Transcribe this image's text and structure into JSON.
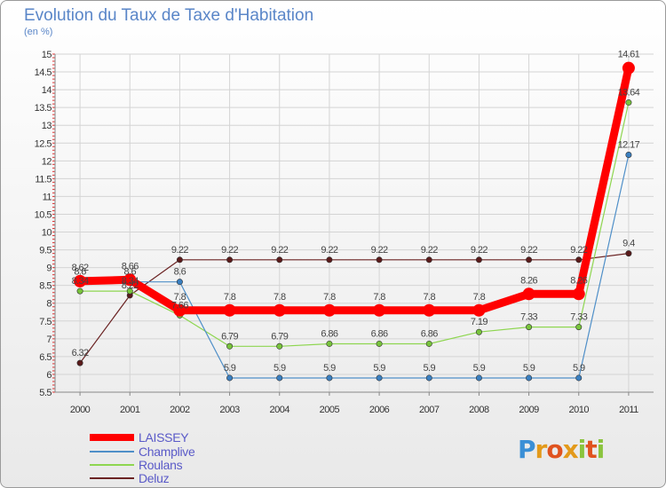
{
  "title": "Evolution du Taux de Taxe d'Habitation",
  "unit": "(en %)",
  "logo": "Proxiti",
  "colors": {
    "LAISSEY": "#ff0000",
    "Champlive": "#4f8fc8",
    "Roulans": "#8ed650",
    "Deluz": "#6b2323"
  },
  "chart_data": {
    "type": "line",
    "title": "Evolution du Taux de Taxe d'Habitation",
    "ylabel": "(en %)",
    "xlabel": "",
    "x": [
      "2000",
      "2001",
      "2002",
      "2003",
      "2004",
      "2005",
      "2006",
      "2007",
      "2008",
      "2009",
      "2010",
      "2011"
    ],
    "ylim": [
      5.5,
      15
    ],
    "yticks": [
      "5.5",
      "6",
      "6.5",
      "7",
      "7.5",
      "8",
      "8.5",
      "9",
      "9.5",
      "10",
      "10.5",
      "11",
      "11.5",
      "12",
      "12.5",
      "13",
      "13.5",
      "14",
      "14.5",
      "15"
    ],
    "grid": true,
    "legend_position": "bottom-left",
    "series": [
      {
        "name": "LAISSEY",
        "values": [
          8.62,
          8.66,
          7.8,
          7.8,
          7.8,
          7.8,
          7.8,
          7.8,
          7.8,
          8.26,
          8.26,
          14.61
        ],
        "labels": [
          "8.62",
          "8.66",
          "7.8",
          "7.8",
          "7.8",
          "7.8",
          "7.8",
          "7.8",
          "7.8",
          "8.26",
          "8.26",
          "14.61"
        ]
      },
      {
        "name": "Champlive",
        "values": [
          8.6,
          8.6,
          8.6,
          5.9,
          5.9,
          5.9,
          5.9,
          5.9,
          5.9,
          5.9,
          5.9,
          12.17
        ],
        "labels": [
          "8.6",
          "8.6",
          "8.6",
          "5.9",
          "5.9",
          "5.9",
          "5.9",
          "5.9",
          "5.9",
          "5.9",
          "5.9",
          "12.17"
        ]
      },
      {
        "name": "Roulans",
        "values": [
          8.34,
          8.34,
          7.66,
          6.79,
          6.79,
          6.86,
          6.86,
          6.86,
          7.19,
          7.33,
          7.33,
          13.64
        ],
        "labels": [
          "8.34",
          "8.34",
          "7.66",
          "6.79",
          "6.79",
          "6.86",
          "6.86",
          "6.86",
          "7.19",
          "7.33",
          "7.33",
          "13.64"
        ]
      },
      {
        "name": "Deluz",
        "values": [
          6.32,
          8.22,
          9.22,
          9.22,
          9.22,
          9.22,
          9.22,
          9.22,
          9.22,
          9.22,
          9.22,
          9.4
        ],
        "labels": [
          "6.32",
          "8.22",
          "9.22",
          "9.22",
          "9.22",
          "9.22",
          "9.22",
          "9.22",
          "9.22",
          "9.22",
          "9.22",
          "9.4"
        ]
      }
    ]
  }
}
